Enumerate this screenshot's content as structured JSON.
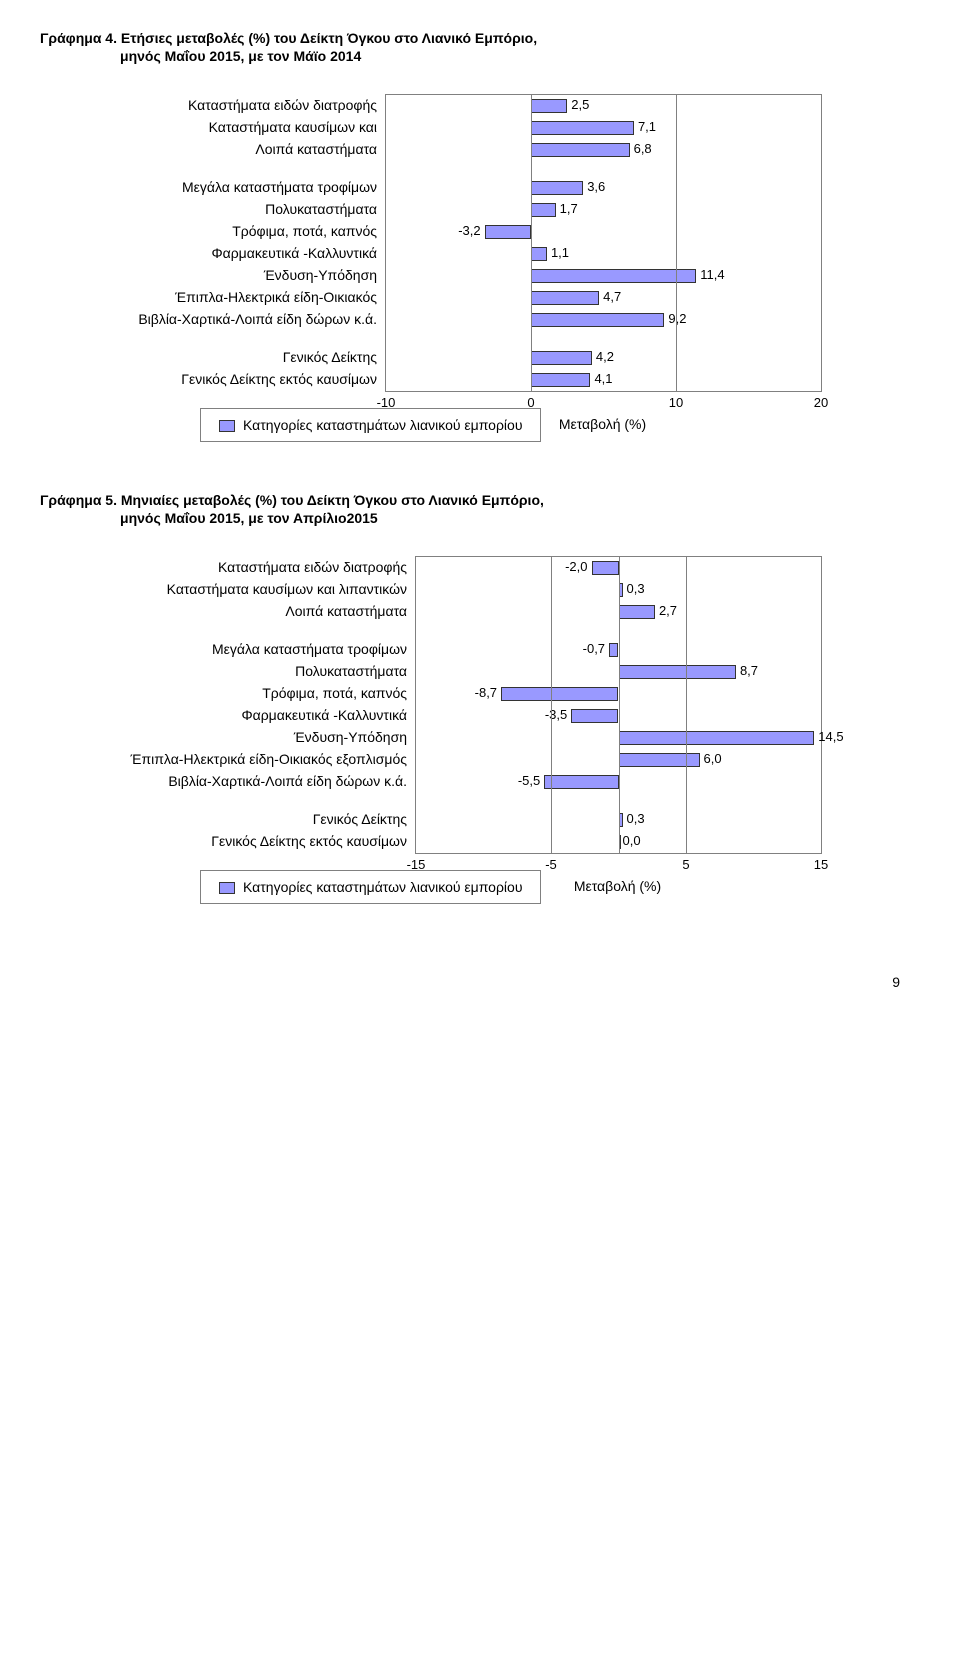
{
  "chart1": {
    "title": "Γράφημα 4. Ετήσιες μεταβολές (%) του Δείκτη Όγκου στο Λιανικό Εμπόριο,",
    "subtitle": "μηνός Μαΐου 2015, με τον Μάϊο 2014",
    "type": "bar-horizontal",
    "xmin": -10,
    "xmax": 20,
    "xticks": [
      -10,
      0,
      10,
      20
    ],
    "xtick_labels": [
      "-10",
      "0",
      "10",
      "20"
    ],
    "xlabel": "Μεταβολή (%)",
    "bar_color": "#9999ff",
    "bar_border": "#333333",
    "grid_color": "#808080",
    "background": "#ffffff",
    "font_size": 14,
    "groups": [
      {
        "items": [
          {
            "label": "Καταστήματα ειδών διατροφής",
            "value": 2.5,
            "text": "2,5"
          },
          {
            "label": "Καταστήματα καυσίμων και",
            "value": 7.1,
            "text": "7,1"
          },
          {
            "label": "Λοιπά καταστήματα",
            "value": 6.8,
            "text": "6,8"
          }
        ]
      },
      {
        "items": [
          {
            "label": "Μεγάλα καταστήματα τροφίμων",
            "value": 3.6,
            "text": "3,6"
          },
          {
            "label": "Πολυκαταστήματα",
            "value": 1.7,
            "text": "1,7"
          },
          {
            "label": "Τρόφιμα, ποτά, καπνός",
            "value": -3.2,
            "text": "-3,2"
          },
          {
            "label": "Φαρμακευτικά -Καλλυντικά",
            "value": 1.1,
            "text": "1,1"
          },
          {
            "label": "Ένδυση-Υπόδηση",
            "value": 11.4,
            "text": "11,4"
          },
          {
            "label": "Έπιπλα-Ηλεκτρικά είδη-Οικιακός",
            "value": 4.7,
            "text": "4,7"
          },
          {
            "label": "Βιβλία-Χαρτικά-Λοιπά είδη δώρων κ.ά.",
            "value": 9.2,
            "text": "9,2"
          }
        ]
      },
      {
        "items": [
          {
            "label": "Γενικός Δείκτης",
            "value": 4.2,
            "text": "4,2"
          },
          {
            "label": "Γενικός Δείκτης εκτός καυσίμων",
            "value": 4.1,
            "text": "4,1"
          }
        ]
      }
    ],
    "legend": "Κατηγορίες καταστημάτων λιανικού εμπορίου"
  },
  "chart2": {
    "title": "Γράφημα 5. Μηνιαίες μεταβολές (%) του Δείκτη Όγκου στο Λιανικό Εμπόριο,",
    "subtitle": "μηνός Μαΐου 2015, με τον Απρίλιο2015",
    "type": "bar-horizontal",
    "xmin": -15,
    "xmax": 15,
    "xticks": [
      -15,
      -5,
      5,
      15
    ],
    "xtick_labels": [
      "-15",
      "-5",
      "5",
      "15"
    ],
    "xlabel": "Μεταβολή (%)",
    "bar_color": "#9999ff",
    "bar_border": "#333333",
    "grid_color": "#808080",
    "background": "#ffffff",
    "font_size": 14,
    "groups": [
      {
        "items": [
          {
            "label": "Καταστήματα ειδών διατροφής",
            "value": -2.0,
            "text": "-2,0"
          },
          {
            "label": "Καταστήματα καυσίμων και λιπαντικών",
            "value": 0.3,
            "text": "0,3"
          },
          {
            "label": "Λοιπά καταστήματα",
            "value": 2.7,
            "text": "2,7"
          }
        ]
      },
      {
        "items": [
          {
            "label": "Μεγάλα καταστήματα τροφίμων",
            "value": -0.7,
            "text": "-0,7"
          },
          {
            "label": "Πολυκαταστήματα",
            "value": 8.7,
            "text": "8,7"
          },
          {
            "label": "Τρόφιμα, ποτά, καπνός",
            "value": -8.7,
            "text": "-8,7"
          },
          {
            "label": "Φαρμακευτικά -Καλλυντικά",
            "value": -3.5,
            "text": "-3,5"
          },
          {
            "label": "Ένδυση-Υπόδηση",
            "value": 14.5,
            "text": "14,5"
          },
          {
            "label": "Έπιπλα-Ηλεκτρικά είδη-Οικιακός εξοπλισμός",
            "value": 6.0,
            "text": "6,0"
          },
          {
            "label": "Βιβλία-Χαρτικά-Λοιπά είδη δώρων κ.ά.",
            "value": -5.5,
            "text": "-5,5"
          }
        ]
      },
      {
        "items": [
          {
            "label": "Γενικός Δείκτης",
            "value": 0.3,
            "text": "0,3"
          },
          {
            "label": "Γενικός Δείκτης εκτός καυσίμων",
            "value": 0.0,
            "text": "0,0"
          }
        ]
      }
    ],
    "legend": "Κατηγορίες καταστημάτων λιανικού εμπορίου"
  },
  "page_number": "9"
}
